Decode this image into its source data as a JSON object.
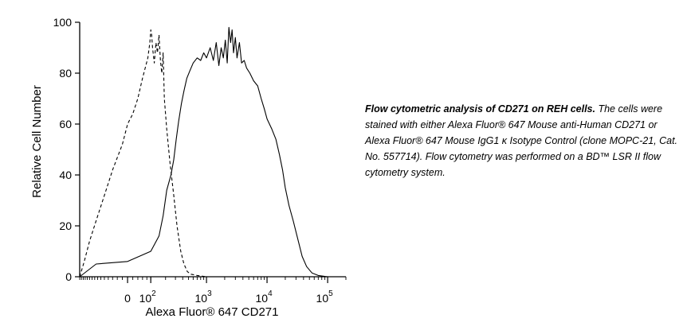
{
  "chart_data": {
    "type": "line",
    "xlabel": "Alexa Fluor® 647 CD271",
    "ylabel": "Relative Cell Number",
    "x_scale": "biexponential",
    "xlim": [
      -300,
      200000
    ],
    "ylim": [
      0,
      100
    ],
    "x_ticks": [
      {
        "value": 0,
        "base": "0",
        "exp": ""
      },
      {
        "value": 100,
        "base": "10",
        "exp": "2"
      },
      {
        "value": 1000,
        "base": "10",
        "exp": "3"
      },
      {
        "value": 10000,
        "base": "10",
        "exp": "4"
      },
      {
        "value": 100000,
        "base": "10",
        "exp": "5"
      }
    ],
    "y_ticks": [
      0,
      20,
      40,
      60,
      80,
      100
    ],
    "grid": false,
    "legend": "none",
    "series": [
      {
        "style": "dashed",
        "x": [
          -300,
          -250,
          -200,
          -150,
          -100,
          -60,
          -20,
          0,
          20,
          40,
          60,
          75,
          85,
          95,
          100,
          105,
          110,
          120,
          130,
          140,
          150,
          160,
          170,
          180,
          190,
          210,
          240,
          280,
          320,
          370,
          420,
          480,
          550,
          700,
          1000,
          2000,
          5000,
          10000,
          200000
        ],
        "y": [
          0,
          6,
          14,
          22,
          32,
          42,
          52,
          60,
          64,
          70,
          78,
          83,
          86,
          92,
          97,
          95,
          90,
          84,
          92,
          88,
          95,
          85,
          80,
          88,
          70,
          58,
          45,
          32,
          20,
          10,
          5,
          2,
          1,
          0.5,
          0,
          0,
          0,
          0,
          0
        ]
      },
      {
        "style": "solid",
        "x": [
          -300,
          -150,
          0,
          100,
          150,
          180,
          210,
          250,
          280,
          310,
          340,
          380,
          420,
          470,
          530,
          600,
          700,
          800,
          900,
          1000,
          1150,
          1300,
          1450,
          1600,
          1750,
          1900,
          2050,
          2200,
          2350,
          2500,
          2650,
          2800,
          3000,
          3200,
          3500,
          3800,
          4200,
          4600,
          5200,
          6000,
          7000,
          8000,
          9000,
          10000,
          12000,
          14000,
          16000,
          18000,
          20000,
          23000,
          27000,
          32000,
          38000,
          45000,
          55000,
          70000,
          100000,
          200000
        ],
        "y": [
          0,
          5,
          6,
          10,
          16,
          24,
          34,
          40,
          46,
          54,
          61,
          68,
          73,
          78,
          81,
          84,
          86,
          85,
          88,
          86,
          90,
          85,
          92,
          83,
          90,
          86,
          93,
          84,
          98,
          92,
          97,
          88,
          94,
          86,
          92,
          84,
          85,
          82,
          80,
          77,
          75,
          70,
          66,
          62,
          58,
          54,
          48,
          42,
          35,
          28,
          22,
          15,
          8,
          4,
          1.5,
          0.5,
          0,
          0
        ]
      }
    ]
  },
  "caption": {
    "title": "Flow cytometric analysis of CD271 on REH cells.",
    "body": " The cells were stained with either Alexa Fluor® 647 Mouse anti-Human CD271 or Alexa Fluor® 647 Mouse IgG1 κ Isotype Control (clone MOPC-21, Cat. No. 557714). Flow cytometry was performed on a BD™ LSR II flow cytometry system."
  }
}
